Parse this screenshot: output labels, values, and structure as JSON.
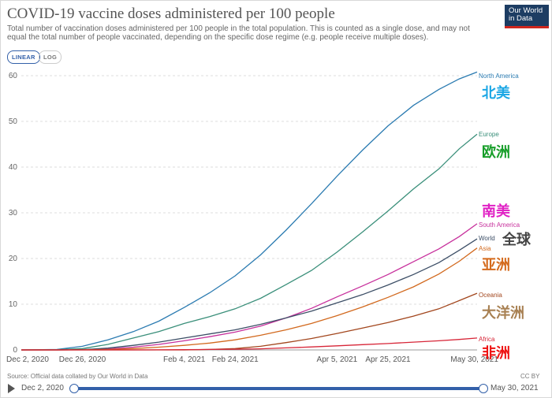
{
  "header": {
    "title": "COVID-19 vaccine doses administered per 100 people",
    "subtitle": "Total number of vaccination doses administered per 100 people in the total population. This is counted as a single dose, and may not equal the total number of people vaccinated, depending on the specific dose regime (e.g. people receive multiple doses).",
    "logo_line1": "Our World",
    "logo_line2": "in Data"
  },
  "controls": {
    "linear_label": "LINEAR",
    "log_label": "LOG"
  },
  "footer": {
    "source": "Source: Official data collated by Our World in Data",
    "license": "CC BY"
  },
  "timeline": {
    "start_label": "Dec 2, 2020",
    "end_label": "May 30, 2021"
  },
  "colors": {
    "accent": "#3360a9"
  },
  "chart_data": {
    "type": "line",
    "title": "COVID-19 vaccine doses administered per 100 people",
    "xlabel": "",
    "ylabel": "",
    "ylim": [
      0,
      60
    ],
    "yticks": [
      0,
      10,
      20,
      30,
      40,
      50,
      60
    ],
    "xlim": [
      0,
      179
    ],
    "xticks": [
      {
        "value": 0,
        "label": "Dec 2, 2020"
      },
      {
        "value": 24,
        "label": "Dec 26, 2020"
      },
      {
        "value": 64,
        "label": "Feb 4, 2021"
      },
      {
        "value": 84,
        "label": "Feb 24, 2021"
      },
      {
        "value": 124,
        "label": "Apr 5, 2021"
      },
      {
        "value": 144,
        "label": "Apr 25, 2021"
      },
      {
        "value": 179,
        "label": "May 30, 2021"
      }
    ],
    "series": [
      {
        "name": "North America",
        "annotation": "北美",
        "color": "#2b7bb1",
        "annotation_color": "#1aa6e4",
        "x": [
          0,
          14,
          24,
          34,
          44,
          54,
          64,
          74,
          84,
          94,
          104,
          114,
          124,
          134,
          144,
          154,
          164,
          172,
          179
        ],
        "y": [
          0,
          0.1,
          0.8,
          2.2,
          4.0,
          6.3,
          9.3,
          12.5,
          16.2,
          20.8,
          26.2,
          32.0,
          38.0,
          43.7,
          49.0,
          53.5,
          57.0,
          59.3,
          60.8
        ]
      },
      {
        "name": "Europe",
        "annotation": "欧洲",
        "color": "#3a8f7a",
        "annotation_color": "#189e2a",
        "x": [
          0,
          14,
          24,
          34,
          44,
          54,
          64,
          74,
          84,
          94,
          104,
          114,
          124,
          134,
          144,
          154,
          164,
          172,
          179
        ],
        "y": [
          0,
          0.05,
          0.3,
          1.2,
          2.6,
          4.0,
          5.8,
          7.3,
          9.0,
          11.3,
          14.3,
          17.4,
          21.4,
          25.8,
          30.4,
          35.2,
          39.6,
          44.0,
          47.2
        ]
      },
      {
        "name": "South America",
        "annotation": "南美",
        "color": "#c7309c",
        "annotation_color": "#e020c4",
        "x": [
          0,
          14,
          24,
          34,
          44,
          54,
          64,
          74,
          84,
          94,
          104,
          114,
          124,
          134,
          144,
          154,
          164,
          172,
          179
        ],
        "y": [
          0,
          0,
          0.05,
          0.2,
          0.6,
          1.2,
          2.0,
          2.9,
          3.9,
          5.2,
          7.0,
          9.1,
          11.6,
          14.0,
          16.5,
          19.3,
          22.1,
          24.8,
          27.6
        ]
      },
      {
        "name": "World",
        "annotation": "全球",
        "color": "#3c4e66",
        "annotation_color": "#444444",
        "x": [
          0,
          14,
          24,
          34,
          44,
          54,
          64,
          74,
          84,
          94,
          104,
          114,
          124,
          134,
          144,
          154,
          164,
          172,
          179
        ],
        "y": [
          0,
          0,
          0.06,
          0.4,
          1.0,
          1.7,
          2.6,
          3.5,
          4.4,
          5.6,
          7.0,
          8.5,
          10.3,
          12.1,
          14.2,
          16.5,
          19.1,
          21.8,
          24.3
        ]
      },
      {
        "name": "Asia",
        "annotation": "亚洲",
        "color": "#d2691e",
        "annotation_color": "#d46a1c",
        "x": [
          0,
          14,
          24,
          34,
          44,
          54,
          64,
          74,
          84,
          94,
          104,
          114,
          124,
          134,
          144,
          154,
          164,
          172,
          179
        ],
        "y": [
          0,
          0,
          0.02,
          0.1,
          0.3,
          0.6,
          1.0,
          1.5,
          2.2,
          3.2,
          4.4,
          5.8,
          7.5,
          9.4,
          11.5,
          13.8,
          16.6,
          19.4,
          22.3
        ]
      },
      {
        "name": "Oceania",
        "annotation": "大洋洲",
        "color": "#a2461d",
        "annotation_color": "#a88052",
        "x": [
          0,
          14,
          24,
          34,
          44,
          54,
          64,
          74,
          84,
          94,
          104,
          114,
          124,
          134,
          144,
          154,
          164,
          172,
          179
        ],
        "y": [
          0,
          0,
          0,
          0,
          0,
          0,
          0,
          0.1,
          0.3,
          0.8,
          1.6,
          2.5,
          3.6,
          4.8,
          6.0,
          7.4,
          9.0,
          10.8,
          12.4
        ]
      },
      {
        "name": "Africa",
        "annotation": "非洲",
        "color": "#d72638",
        "annotation_color": "#ee1111",
        "x": [
          0,
          14,
          24,
          34,
          44,
          54,
          64,
          74,
          84,
          94,
          104,
          114,
          124,
          134,
          144,
          154,
          164,
          172,
          179
        ],
        "y": [
          0,
          0,
          0,
          0,
          0,
          0.02,
          0.05,
          0.1,
          0.15,
          0.25,
          0.45,
          0.65,
          0.9,
          1.15,
          1.4,
          1.7,
          2.0,
          2.3,
          2.6
        ]
      }
    ]
  }
}
